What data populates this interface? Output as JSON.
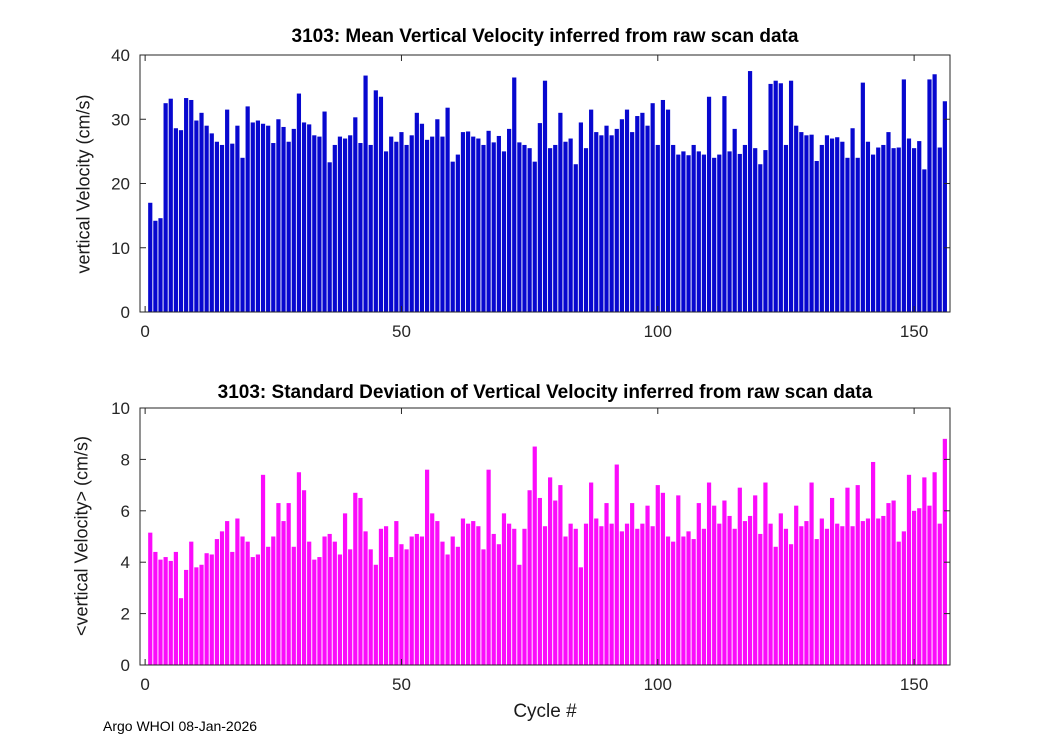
{
  "figure": {
    "footer": "Argo WHOI 08-Jan-2026"
  },
  "chart_data": [
    {
      "type": "bar",
      "title": "3103: Mean Vertical Velocity inferred from raw scan data",
      "ylabel": "vertical Velocity (cm/s)",
      "xlabel": "",
      "bar_color_name": "blue",
      "color": "#0808cf",
      "xlim": [
        -1,
        157
      ],
      "ylim": [
        0,
        40
      ],
      "xticks": [
        0,
        50,
        100,
        150
      ],
      "yticks": [
        0,
        10,
        20,
        30,
        40
      ],
      "grid": false,
      "legend": null,
      "x_start": 1,
      "values": [
        17,
        14.2,
        14.6,
        32.5,
        33.2,
        28.6,
        28.3,
        33.3,
        33,
        29.8,
        31,
        29,
        27.8,
        26.5,
        26,
        31.5,
        26.2,
        29,
        24,
        32,
        29.5,
        29.8,
        29.3,
        29,
        26.3,
        30,
        28.8,
        26.5,
        28.5,
        34,
        29.5,
        29.2,
        27.5,
        27.3,
        31.2,
        23.3,
        26,
        27.3,
        27,
        27.5,
        30.3,
        26.3,
        36.8,
        26,
        34.5,
        33.5,
        25,
        27.3,
        26.5,
        28,
        26,
        27.5,
        31,
        29.3,
        26.8,
        27.3,
        30,
        27.3,
        31.8,
        23.4,
        24.5,
        28,
        28.1,
        27.3,
        27,
        26,
        28.2,
        26.4,
        27.4,
        25,
        28.5,
        36.5,
        26.4,
        26,
        25.5,
        23.4,
        29.4,
        36,
        25.5,
        26,
        31,
        26.5,
        27,
        23,
        29.5,
        25.5,
        31.5,
        28,
        27.5,
        29,
        27.5,
        28.5,
        30,
        31.5,
        28,
        30.5,
        31,
        29,
        32.5,
        26,
        33,
        31.5,
        26,
        24.5,
        25,
        24.4,
        26,
        25,
        24.5,
        33.5,
        24,
        24.5,
        33.6,
        25,
        28.5,
        24.6,
        26,
        37.5,
        25.5,
        23,
        25.2,
        35.5,
        36,
        35.6,
        26,
        36,
        29,
        28,
        27.5,
        27.6,
        23.5,
        26,
        27.5,
        27,
        27.2,
        26.5,
        24,
        28.6,
        24,
        35.7,
        26.5,
        24.5,
        25.6,
        26,
        28,
        25.5,
        25.6,
        36.2,
        27,
        25.5,
        26.6,
        22.2,
        36.2,
        37,
        25.6,
        32.8
      ]
    },
    {
      "type": "bar",
      "title": "3103: Standard Deviation of Vertical Velocity inferred from raw scan data",
      "ylabel": "<vertical Velocity> (cm/s)",
      "xlabel": "Cycle #",
      "bar_color_name": "magenta",
      "color": "#fb0cfb",
      "xlim": [
        -1,
        157
      ],
      "ylim": [
        0,
        10
      ],
      "xticks": [
        0,
        50,
        100,
        150
      ],
      "yticks": [
        0,
        2,
        4,
        6,
        8,
        10
      ],
      "grid": false,
      "legend": null,
      "x_start": 1,
      "values": [
        5.15,
        4.4,
        4.1,
        4.2,
        4.05,
        4.4,
        2.6,
        3.7,
        4.8,
        3.8,
        3.9,
        4.35,
        4.3,
        4.9,
        5.2,
        5.6,
        4.4,
        5.7,
        5,
        4.8,
        4.2,
        4.3,
        7.4,
        4.6,
        5,
        6.3,
        5.6,
        6.3,
        4.6,
        7.5,
        6.8,
        4.8,
        4.1,
        4.2,
        5,
        5.1,
        4.8,
        4.3,
        5.9,
        4.5,
        6.7,
        6.5,
        5.2,
        4.5,
        3.9,
        5.3,
        5.4,
        4.2,
        5.6,
        4.7,
        4.5,
        5,
        5.1,
        5,
        7.6,
        5.9,
        5.6,
        4.8,
        4.3,
        5,
        4.6,
        5.7,
        5.5,
        5.6,
        5.4,
        4.5,
        7.6,
        5.1,
        4.7,
        5.9,
        5.5,
        5.3,
        3.9,
        5.3,
        6.8,
        8.5,
        6.5,
        5.4,
        7.3,
        6.4,
        7,
        5,
        5.5,
        5.3,
        3.8,
        5.5,
        7.1,
        5.7,
        5.4,
        6.3,
        5.5,
        7.8,
        5.2,
        5.5,
        6.3,
        5.3,
        5.5,
        6.2,
        5.4,
        7,
        6.7,
        5,
        4.8,
        6.6,
        5,
        5.2,
        4.9,
        6.3,
        5.3,
        7.1,
        6.2,
        5.5,
        6.4,
        5.8,
        5.3,
        6.9,
        5.6,
        5.8,
        6.6,
        5.1,
        7.1,
        5.5,
        4.6,
        5.9,
        5.3,
        4.7,
        6.2,
        5.4,
        5.6,
        7.1,
        4.9,
        5.7,
        5.3,
        6.5,
        5.5,
        5.4,
        6.9,
        5.4,
        7,
        5.6,
        5.7,
        7.9,
        5.7,
        5.8,
        6.3,
        6.4,
        4.8,
        5.2,
        7.4,
        6,
        6.1,
        7.3,
        6.2,
        7.5,
        5.5,
        8.8
      ]
    }
  ]
}
